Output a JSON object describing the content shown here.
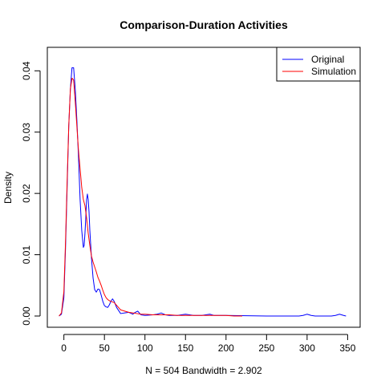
{
  "chart_data": {
    "type": "line",
    "title": "Comparison-Duration Activities",
    "xlabel": "N = 504   Bandwidth = 2.902",
    "ylabel": "Density",
    "xlim": [
      -5,
      350
    ],
    "ylim": [
      0,
      0.042
    ],
    "x_ticks": [
      0,
      50,
      100,
      150,
      200,
      250,
      300,
      350
    ],
    "x_tick_labels": [
      "0",
      "50",
      "100",
      "150",
      "200",
      "250",
      "300",
      "350"
    ],
    "y_ticks": [
      0,
      0.01,
      0.02,
      0.03,
      0.04
    ],
    "y_tick_labels": [
      "0.00",
      "0.01",
      "0.02",
      "0.03",
      "0.04"
    ],
    "grid": false,
    "legend_position": "top-right",
    "series": [
      {
        "name": "Original",
        "color": "#0000ff",
        "x": [
          -6,
          -3,
          0,
          2,
          4,
          6,
          8,
          10,
          12,
          14,
          16,
          18,
          20,
          22,
          24,
          25,
          26,
          27,
          28,
          29,
          30,
          31,
          32,
          34,
          36,
          38,
          40,
          42,
          44,
          46,
          48,
          50,
          52,
          54,
          56,
          58,
          60,
          62,
          65,
          70,
          75,
          80,
          85,
          88,
          91,
          95,
          100,
          110,
          115,
          120,
          125,
          130,
          140,
          150,
          160,
          170,
          175,
          180,
          185,
          200,
          250,
          290,
          295,
          300,
          305,
          310,
          330,
          335,
          340,
          345,
          348
        ],
        "y": [
          0,
          0.0003,
          0.003,
          0.011,
          0.021,
          0.031,
          0.037,
          0.0405,
          0.0405,
          0.037,
          0.032,
          0.026,
          0.019,
          0.014,
          0.0112,
          0.0115,
          0.0135,
          0.016,
          0.019,
          0.0199,
          0.019,
          0.017,
          0.014,
          0.0095,
          0.0062,
          0.0043,
          0.0039,
          0.0044,
          0.0043,
          0.0034,
          0.0024,
          0.0017,
          0.0015,
          0.0014,
          0.0018,
          0.0024,
          0.0028,
          0.0024,
          0.0014,
          0.0004,
          0.0005,
          0.0006,
          0.0003,
          0.0006,
          0.0008,
          0.0002,
          0.0001,
          0.0002,
          0.0003,
          0.0005,
          0.0002,
          0.0001,
          0.0001,
          0.0003,
          0.0001,
          0.0001,
          0.0002,
          0.0003,
          0.0001,
          0.0001,
          0,
          0,
          0.0001,
          0.0003,
          0.0001,
          0,
          0,
          0.0001,
          0.0003,
          0.0001,
          0
        ]
      },
      {
        "name": "Simulation",
        "color": "#ff0000",
        "x": [
          -6,
          -3,
          0,
          2,
          4,
          6,
          8,
          10,
          12,
          14,
          16,
          18,
          20,
          22,
          24,
          26,
          28,
          30,
          32,
          34,
          36,
          38,
          40,
          42,
          44,
          46,
          48,
          50,
          52,
          54,
          56,
          58,
          60,
          62,
          64,
          66,
          68,
          70,
          75,
          80,
          85,
          90,
          95,
          100,
          110,
          120,
          130,
          140,
          150,
          160,
          170,
          180,
          190,
          200,
          210,
          220
        ],
        "y": [
          0,
          0.0005,
          0.004,
          0.012,
          0.022,
          0.031,
          0.037,
          0.0388,
          0.0385,
          0.035,
          0.031,
          0.027,
          0.024,
          0.021,
          0.019,
          0.018,
          0.016,
          0.0135,
          0.0115,
          0.0098,
          0.0088,
          0.008,
          0.0072,
          0.0063,
          0.0057,
          0.005,
          0.0042,
          0.0035,
          0.003,
          0.0027,
          0.0025,
          0.0024,
          0.0023,
          0.0022,
          0.0019,
          0.0016,
          0.0013,
          0.001,
          0.0008,
          0.0006,
          0.0005,
          0.0004,
          0.0003,
          0.0003,
          0.0002,
          0.0002,
          0.0002,
          0.0001,
          0.0001,
          0.0001,
          0.0001,
          0.0001,
          0.0001,
          0.0001,
          0,
          0
        ]
      }
    ]
  }
}
